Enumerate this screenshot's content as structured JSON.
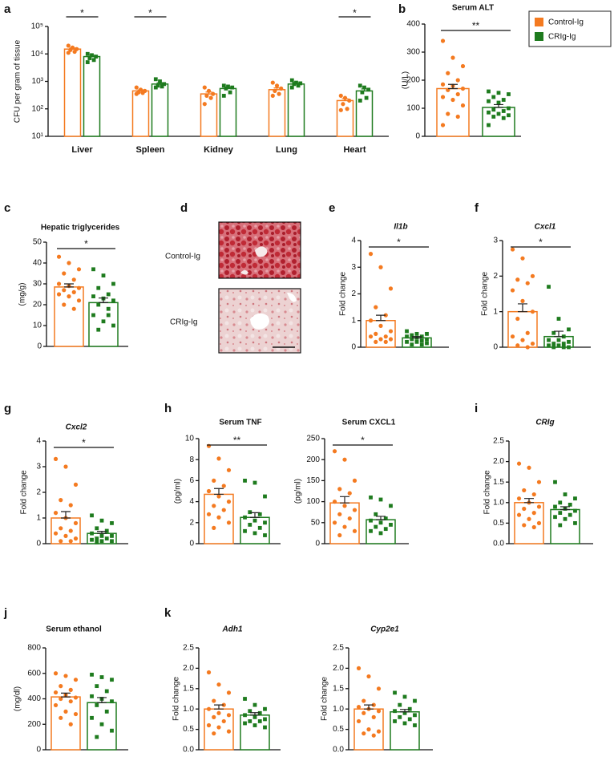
{
  "groups": [
    {
      "name": "Control-Ig",
      "color": "#f47a20"
    },
    {
      "name": "CRIg-Ig",
      "color": "#1e7b1e"
    }
  ],
  "chart_data": [
    {
      "type": "bar",
      "panel": "a",
      "y_label": "CFU per gram of tissue",
      "log_y": true,
      "categories": [
        "Liver",
        "Spleen",
        "Kidney",
        "Lung",
        "Heart"
      ],
      "ylim": [
        10,
        100000
      ],
      "yticks": [
        {
          "value": 10,
          "label": "10¹"
        },
        {
          "value": 100,
          "label": "10²"
        },
        {
          "value": 1000,
          "label": "10³"
        },
        {
          "value": 10000,
          "label": "10⁴"
        },
        {
          "value": 100000,
          "label": "10⁵"
        }
      ],
      "series": [
        {
          "values": [
            15000,
            450,
            350,
            500,
            200
          ],
          "errors": [
            1500,
            40,
            60,
            80,
            35
          ],
          "points": [
            [
              20000,
              17000,
              15000,
              14000,
              12000,
              11000
            ],
            [
              600,
              500,
              450,
              400,
              380,
              350
            ],
            [
              600,
              450,
              350,
              300,
              250,
              150
            ],
            [
              900,
              700,
              550,
              450,
              350,
              300
            ],
            [
              300,
              250,
              200,
              150,
              100,
              90
            ]
          ]
        },
        {
          "values": [
            8000,
            800,
            550,
            800,
            450
          ],
          "errors": [
            1000,
            80,
            60,
            60,
            80
          ],
          "points": [
            [
              10000,
              9000,
              8000,
              7000,
              6000,
              5000
            ],
            [
              1200,
              1000,
              800,
              700,
              650,
              600
            ],
            [
              700,
              650,
              600,
              550,
              400,
              300
            ],
            [
              1100,
              900,
              850,
              800,
              700,
              600
            ],
            [
              700,
              600,
              500,
              400,
              250,
              200
            ]
          ]
        }
      ],
      "significance": [
        "*",
        "*",
        null,
        null,
        "*"
      ]
    },
    {
      "type": "bar",
      "panel": "b",
      "title": "Serum ALT",
      "y_label": "(U/L)",
      "ylim": [
        0,
        400
      ],
      "yticks": [
        0,
        100,
        200,
        300,
        400
      ],
      "values": [
        170,
        103
      ],
      "errors": [
        15,
        10
      ],
      "points": [
        [
          340,
          280,
          250,
          225,
          200,
          185,
          180,
          170,
          165,
          150,
          140,
          130,
          110,
          80,
          70,
          40
        ],
        [
          160,
          155,
          150,
          140,
          130,
          125,
          120,
          100,
          95,
          90,
          85,
          80,
          75,
          70,
          65,
          40
        ]
      ],
      "significance": "**"
    },
    {
      "type": "bar",
      "panel": "c",
      "title": "Hepatic triglycerides",
      "y_label": "(mg/g)",
      "ylim": [
        0,
        50
      ],
      "yticks": [
        0,
        10,
        20,
        30,
        40,
        50
      ],
      "values": [
        28.5,
        21
      ],
      "errors": [
        1.5,
        2.2
      ],
      "points": [
        [
          43,
          40,
          37,
          35,
          32,
          30,
          29,
          28,
          27,
          26,
          25,
          24,
          22,
          20,
          18
        ],
        [
          37,
          34,
          30,
          28,
          25,
          24,
          23,
          22,
          20,
          18,
          15,
          12,
          10,
          8,
          15
        ]
      ],
      "significance": "*"
    },
    {
      "type": "image",
      "panel": "d",
      "labels": [
        "Control-Ig",
        "CRIg-Ig"
      ]
    },
    {
      "type": "bar",
      "panel": "e",
      "title": "Il1b",
      "title_italic": true,
      "y_label": "Fold change",
      "ylim": [
        0,
        4
      ],
      "yticks": [
        0,
        1,
        2,
        3,
        4
      ],
      "values": [
        1.0,
        0.35
      ],
      "errors": [
        0.2,
        0.05
      ],
      "points": [
        [
          3.5,
          3.0,
          2.2,
          1.5,
          1.2,
          1.0,
          0.8,
          0.6,
          0.5,
          0.4,
          0.4,
          0.3,
          0.3,
          0.2,
          0.2
        ],
        [
          0.6,
          0.5,
          0.5,
          0.45,
          0.4,
          0.4,
          0.35,
          0.3,
          0.3,
          0.25,
          0.2,
          0.2,
          0.15,
          0.1,
          0.1
        ]
      ],
      "significance": "*"
    },
    {
      "type": "bar",
      "panel": "f",
      "title": "Cxcl1",
      "title_italic": true,
      "y_label": "Fold change",
      "ylim": [
        0,
        3
      ],
      "yticks": [
        0,
        1,
        2,
        3
      ],
      "values": [
        1.0,
        0.3
      ],
      "errors": [
        0.22,
        0.15
      ],
      "points": [
        [
          2.75,
          2.5,
          2.0,
          1.9,
          1.8,
          1.6,
          1.3,
          1.0,
          0.8,
          0.4,
          0.3,
          0.2,
          0.1,
          0.05,
          0.0
        ],
        [
          1.7,
          0.8,
          0.5,
          0.4,
          0.3,
          0.2,
          0.2,
          0.15,
          0.1,
          0.1,
          0.05,
          0.05,
          0.0,
          0.0,
          0.0
        ]
      ],
      "significance": "*"
    },
    {
      "type": "bar",
      "panel": "g",
      "title": "Cxcl2",
      "title_italic": true,
      "y_label": "Fold change",
      "ylim": [
        0,
        4
      ],
      "yticks": [
        0,
        1,
        2,
        3,
        4
      ],
      "values": [
        1.0,
        0.4
      ],
      "errors": [
        0.25,
        0.08
      ],
      "points": [
        [
          3.3,
          3.0,
          2.3,
          1.7,
          1.5,
          1.2,
          1.0,
          0.8,
          0.6,
          0.5,
          0.4,
          0.3,
          0.2,
          0.1,
          0.1
        ],
        [
          1.1,
          0.9,
          0.8,
          0.6,
          0.5,
          0.4,
          0.3,
          0.3,
          0.2,
          0.2,
          0.15,
          0.1,
          0.1,
          0.05
        ]
      ],
      "significance": "*"
    },
    {
      "type": "bar",
      "panel": "h",
      "title": "Serum TNF",
      "y_label": "(pg/ml)",
      "ylim": [
        0,
        10
      ],
      "yticks": [
        0,
        2,
        4,
        6,
        8,
        10
      ],
      "values": [
        4.7,
        2.5
      ],
      "errors": [
        0.55,
        0.45
      ],
      "points": [
        [
          9.3,
          8.1,
          7.0,
          6.0,
          5.5,
          5.0,
          4.5,
          4.0,
          3.6,
          3.2,
          2.8,
          2.5,
          2.0,
          1.5
        ],
        [
          6.0,
          5.8,
          4.5,
          3.0,
          2.8,
          2.5,
          2.2,
          2.0,
          1.8,
          1.5,
          1.2,
          1.0,
          0.8
        ]
      ],
      "significance": "**"
    },
    {
      "type": "bar",
      "title": "Serum CXCL1",
      "y_label": "(pg/ml)",
      "ylim": [
        0,
        250
      ],
      "yticks": [
        0,
        50,
        100,
        150,
        200,
        250
      ],
      "values": [
        97,
        57
      ],
      "errors": [
        15,
        8
      ],
      "points": [
        [
          220,
          200,
          150,
          130,
          120,
          100,
          90,
          80,
          70,
          60,
          50,
          40,
          30,
          20
        ],
        [
          110,
          105,
          90,
          70,
          60,
          55,
          50,
          45,
          40,
          35,
          30,
          25
        ]
      ],
      "significance": "*"
    },
    {
      "type": "bar",
      "panel": "i",
      "title": "CRIg",
      "title_italic": true,
      "y_label": "Fold change",
      "ylim": [
        0,
        2.5
      ],
      "yticks": [
        {
          "value": 0,
          "label": "0.0"
        },
        0.5,
        {
          "value": 1,
          "label": "1.0"
        },
        1.5,
        {
          "value": 2,
          "label": "2.0"
        },
        2.5
      ],
      "values": [
        1.0,
        0.83
      ],
      "errors": [
        0.1,
        0.07
      ],
      "points": [
        [
          1.95,
          1.85,
          1.5,
          1.3,
          1.2,
          1.1,
          1.0,
          0.9,
          0.85,
          0.75,
          0.7,
          0.6,
          0.5,
          0.45,
          0.4
        ],
        [
          1.5,
          1.2,
          1.1,
          1.0,
          0.95,
          0.9,
          0.85,
          0.8,
          0.75,
          0.7,
          0.65,
          0.6,
          0.5,
          0.45
        ]
      ]
    },
    {
      "type": "bar",
      "panel": "j",
      "title": "Serum ethanol",
      "y_label": "(mg/dl)",
      "ylim": [
        0,
        800
      ],
      "yticks": [
        0,
        200,
        400,
        600,
        800
      ],
      "values": [
        415,
        370
      ],
      "errors": [
        30,
        40
      ],
      "points": [
        [
          600,
          580,
          550,
          500,
          470,
          450,
          430,
          410,
          400,
          380,
          350,
          300,
          280,
          250,
          200
        ],
        [
          590,
          570,
          550,
          500,
          460,
          420,
          400,
          380,
          350,
          300,
          250,
          200,
          150,
          100
        ]
      ]
    },
    {
      "type": "bar",
      "panel": "k",
      "title": "Adh1",
      "title_italic": true,
      "y_label": "Fold change",
      "ylim": [
        0,
        2.5
      ],
      "yticks": [
        {
          "value": 0,
          "label": "0.0"
        },
        0.5,
        {
          "value": 1,
          "label": "1.0"
        },
        1.5,
        {
          "value": 2,
          "label": "2.0"
        },
        2.5
      ],
      "values": [
        1.0,
        0.85
      ],
      "errors": [
        0.1,
        0.06
      ],
      "points": [
        [
          1.9,
          1.6,
          1.4,
          1.2,
          1.1,
          1.0,
          0.9,
          0.85,
          0.8,
          0.7,
          0.6,
          0.55,
          0.45,
          0.4
        ],
        [
          1.25,
          1.1,
          1.0,
          0.95,
          0.9,
          0.85,
          0.8,
          0.75,
          0.7,
          0.7,
          0.65,
          0.6,
          0.55
        ]
      ]
    },
    {
      "type": "bar",
      "title": "Cyp2e1",
      "title_italic": true,
      "y_label": "Fold change",
      "ylim": [
        0,
        2.5
      ],
      "yticks": [
        {
          "value": 0,
          "label": "0.0"
        },
        0.5,
        {
          "value": 1,
          "label": "1.0"
        },
        1.5,
        {
          "value": 2,
          "label": "2.0"
        },
        2.5
      ],
      "values": [
        1.0,
        0.93
      ],
      "errors": [
        0.1,
        0.06
      ],
      "points": [
        [
          2.0,
          1.8,
          1.5,
          1.2,
          1.1,
          1.05,
          1.0,
          0.95,
          0.9,
          0.8,
          0.7,
          0.5,
          0.45,
          0.4,
          0.35
        ],
        [
          1.4,
          1.3,
          1.2,
          1.1,
          1.0,
          0.95,
          0.9,
          0.85,
          0.8,
          0.75,
          0.7,
          0.65,
          0.6
        ]
      ]
    }
  ]
}
